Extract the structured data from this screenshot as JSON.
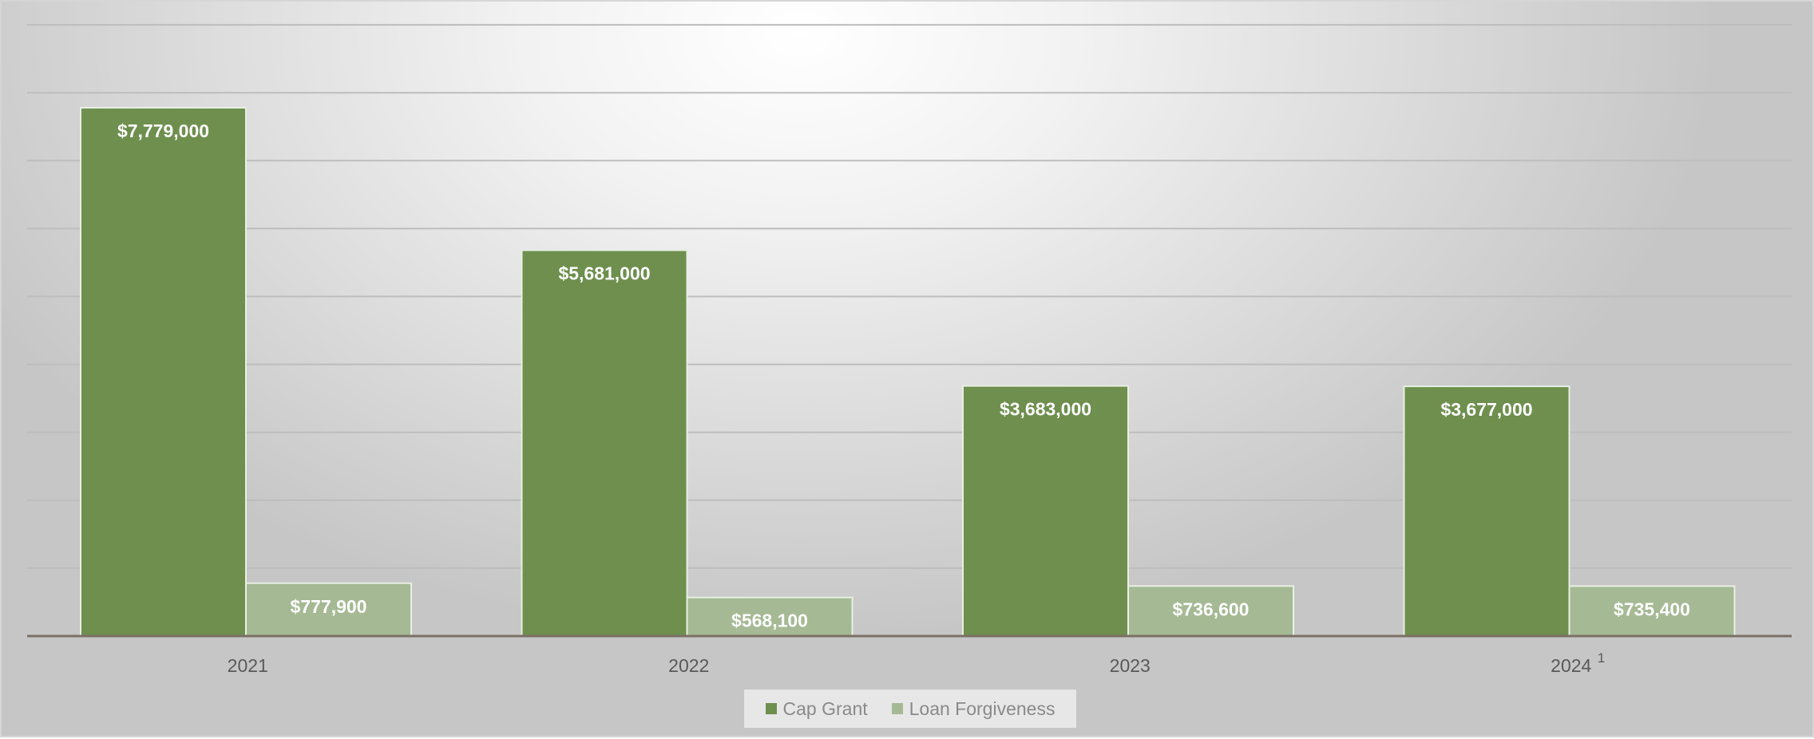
{
  "chart_data": {
    "type": "bar",
    "categories": [
      "2021",
      "2022",
      "2023",
      "2024"
    ],
    "category_superscripts": [
      "",
      "",
      "",
      "1"
    ],
    "series": [
      {
        "name": "Cap Grant",
        "values": [
          7779000,
          5681000,
          3683000,
          3677000
        ],
        "labels": [
          "$7,779,000",
          "$5,681,000",
          "$3,683,000",
          "$3,677,000"
        ],
        "color": "#6e8f4e"
      },
      {
        "name": "Loan Forgiveness",
        "values": [
          777900,
          568100,
          736600,
          735400
        ],
        "labels": [
          "$777,900",
          "$568,100",
          "$736,600",
          "$735,400"
        ],
        "color": "#a5ba94"
      }
    ],
    "ylim": [
      0,
      9000000
    ],
    "y_gridline_step": 1000000,
    "grid": true,
    "legend_position": "bottom"
  }
}
